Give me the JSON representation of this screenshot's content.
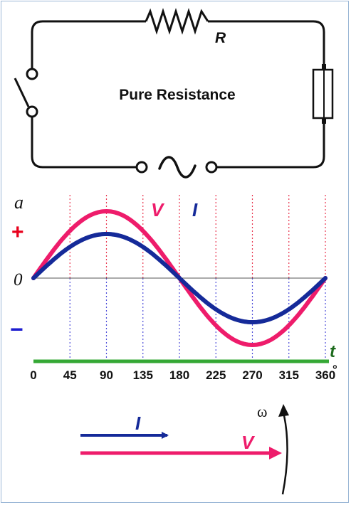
{
  "circuit": {
    "title": "Pure Resistance",
    "resistor_label": "R"
  },
  "graph": {
    "y_axis_label": "a",
    "plus_label": "+",
    "zero_label": "0",
    "minus_label": "−",
    "x_axis_label": "t",
    "degree_symbol": "°",
    "legend_v": "V",
    "legend_i": "I",
    "ticks": [
      "0",
      "45",
      "90",
      "135",
      "180",
      "225",
      "270",
      "315",
      "360"
    ]
  },
  "chart_data": {
    "type": "line",
    "x": [
      0,
      45,
      90,
      135,
      180,
      225,
      270,
      315,
      360
    ],
    "xlabel": "t",
    "ylabel": "a",
    "series": [
      {
        "name": "V",
        "amplitude": 1.0,
        "values": [
          0,
          0.71,
          1.0,
          0.71,
          0,
          -0.71,
          -1.0,
          -0.71,
          0
        ]
      },
      {
        "name": "I",
        "amplitude": 0.66,
        "values": [
          0,
          0.47,
          0.66,
          0.47,
          0,
          -0.47,
          -0.66,
          -0.47,
          0
        ]
      }
    ],
    "colors": {
      "V": "#ee1c6b",
      "I": "#152a99",
      "v_grid": "#e8334d",
      "i_grid": "#4a4ad8",
      "time_axis": "#35a835"
    }
  },
  "phasor": {
    "label_i": "I",
    "label_v": "V",
    "omega_label": "ω"
  }
}
